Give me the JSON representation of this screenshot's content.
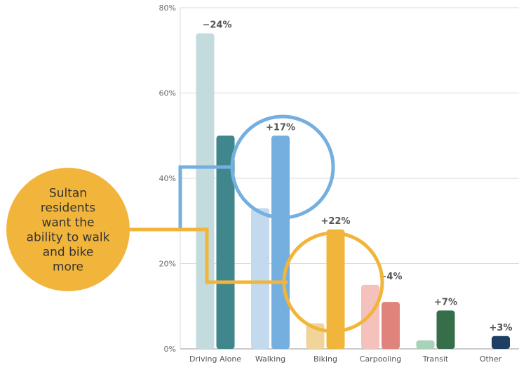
{
  "chart_data": {
    "type": "bar",
    "categories": [
      "Driving Alone",
      "Walking",
      "Biking",
      "Carpooling",
      "Transit",
      "Other"
    ],
    "series": [
      {
        "values": [
          74,
          33,
          6,
          15,
          2,
          0
        ]
      },
      {
        "values": [
          50,
          50,
          28,
          11,
          9,
          3
        ]
      }
    ],
    "change_labels": [
      "−24%",
      "+17%",
      "+22%",
      "−4%",
      "+7%",
      "+3%"
    ],
    "ylim": [
      0,
      80
    ],
    "yticks": [
      "0%",
      "20%",
      "40%",
      "60%",
      "80%"
    ],
    "grid": true,
    "colors": {
      "series1": [
        "#c3dbdd",
        "#c3d9ee",
        "#f0d49a",
        "#f4c1bd",
        "#a9d3b8",
        "#d8dde6"
      ],
      "series2": [
        "#3f878d",
        "#74afe0",
        "#f2b53b",
        "#e0847b",
        "#356e48",
        "#1d3f64"
      ]
    }
  },
  "callout": {
    "lines": [
      "Sultan",
      "residents",
      "want the",
      "ability to walk",
      "and bike",
      "more"
    ],
    "fill": "#f2b53b",
    "walk_ring_color": "#74afe0",
    "bike_ring_color": "#f2b53b"
  }
}
